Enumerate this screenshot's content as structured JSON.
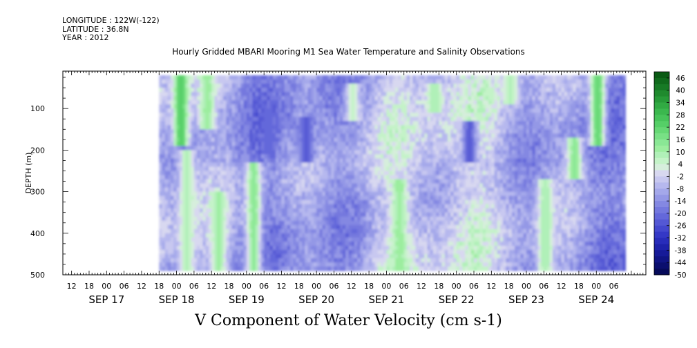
{
  "meta": {
    "longitude": "LONGITUDE : 122W(-122)",
    "latitude": "LATITUDE : 36.8N",
    "year": "YEAR : 2012"
  },
  "chart_data": {
    "type": "heatmap",
    "title": "Hourly Gridded MBARI Mooring M1 Sea Water Temperature and Salinity Observations",
    "xlabel": "V Component of Water Velocity (cm s-1)",
    "ylabel": "DEPTH (m)",
    "x_hour_ticks": [
      "12",
      "18",
      "00",
      "06",
      "12",
      "18",
      "00",
      "06",
      "12",
      "18",
      "00",
      "06",
      "12",
      "18",
      "00",
      "06",
      "12",
      "18",
      "00",
      "06",
      "12",
      "18",
      "00",
      "06",
      "12",
      "18",
      "00",
      "06",
      "12",
      "18",
      "00",
      "06"
    ],
    "x_day_labels": [
      "SEP 17",
      "SEP 18",
      "SEP 19",
      "SEP 20",
      "SEP 21",
      "SEP 22",
      "SEP 23",
      "SEP 24"
    ],
    "x_day_label_hour": [
      0,
      24,
      48,
      72,
      96,
      120,
      144,
      168
    ],
    "x_hour_ticks_start_hour": -12,
    "xlim_hours": [
      -15,
      185
    ],
    "data_xrange_hours": [
      18,
      178
    ],
    "y_ticks": [
      100,
      200,
      300,
      400,
      500
    ],
    "ylim": [
      500,
      10
    ],
    "data_yrange": [
      20,
      485
    ],
    "colorbar": {
      "labels": [
        "46",
        "40",
        "34",
        "28",
        "22",
        "16",
        "10",
        "4",
        "-2",
        "-8",
        "-14",
        "-20",
        "-26",
        "-32",
        "-38",
        "-44",
        "-50"
      ],
      "levels": [
        49,
        46,
        43,
        40,
        37,
        34,
        31,
        28,
        25,
        22,
        19,
        16,
        13,
        10,
        7,
        4,
        1,
        -2,
        -5,
        -8,
        -11,
        -14,
        -17,
        -20,
        -23,
        -26,
        -29,
        -32,
        -35,
        -38,
        -41,
        -44,
        -47,
        -50
      ],
      "colors_top_to_bottom": [
        "#0a5a14",
        "#106a1c",
        "#177a25",
        "#1f8a2e",
        "#279a38",
        "#31aa43",
        "#3bb84e",
        "#47c45a",
        "#55cf67",
        "#66d875",
        "#78e085",
        "#8ae795",
        "#9ced9f",
        "#b0f0b8",
        "#c4f3c8",
        "#d6eedc",
        "#d8d8f0",
        "#c8c8f0",
        "#b6b8ee",
        "#a4a8ea",
        "#9498e6",
        "#8488e2",
        "#7478de",
        "#6468da",
        "#5458d4",
        "#4448ce",
        "#3438c6",
        "#282cba",
        "#1e22aa",
        "#161a98",
        "#101484",
        "#0a0e6e",
        "#060a5a"
      ]
    },
    "grid": false,
    "features": [
      {
        "hour": 25,
        "depth": [
          20,
          180
        ],
        "value": 24
      },
      {
        "hour": 34,
        "depth": [
          20,
          140
        ],
        "value": 12
      },
      {
        "hour": 27,
        "depth": [
          200,
          485
        ],
        "value": 8
      },
      {
        "hour": 38,
        "depth": [
          300,
          485
        ],
        "value": 10
      },
      {
        "hour": 50,
        "depth": [
          230,
          485
        ],
        "value": 14
      },
      {
        "hour": 55,
        "depth": [
          100,
          200
        ],
        "value": -22
      },
      {
        "hour": 68,
        "depth": [
          120,
          220
        ],
        "value": -24
      },
      {
        "hour": 84,
        "depth": [
          40,
          120
        ],
        "value": 6
      },
      {
        "hour": 100,
        "depth": [
          270,
          485
        ],
        "value": 12
      },
      {
        "hour": 112,
        "depth": [
          40,
          100
        ],
        "value": 10
      },
      {
        "hour": 124,
        "depth": [
          130,
          220
        ],
        "value": -24
      },
      {
        "hour": 138,
        "depth": [
          20,
          80
        ],
        "value": 8
      },
      {
        "hour": 150,
        "depth": [
          270,
          485
        ],
        "value": 10
      },
      {
        "hour": 168,
        "depth": [
          20,
          180
        ],
        "value": 22
      },
      {
        "hour": 160,
        "depth": [
          170,
          260
        ],
        "value": 14
      }
    ]
  }
}
